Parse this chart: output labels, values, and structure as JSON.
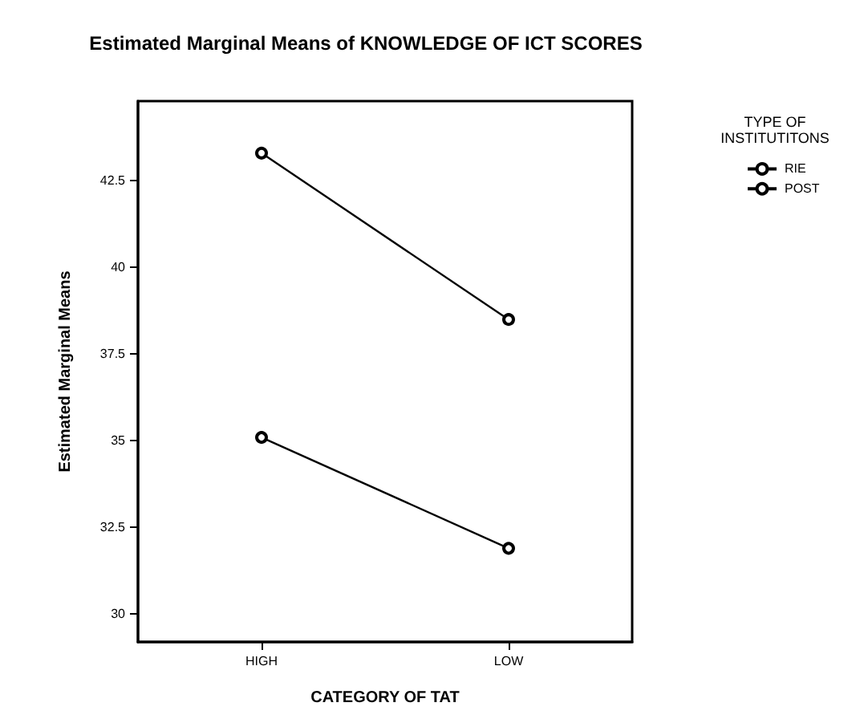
{
  "chart_data": {
    "type": "line",
    "title": "Estimated Marginal Means of KNOWLEDGE OF ICT SCORES",
    "xlabel": "CATEGORY OF TAT",
    "ylabel": "Estimated Marginal Means",
    "legend_title": "TYPE OF\nINSTITUTITONS",
    "categories": [
      "HIGH",
      "LOW"
    ],
    "series": [
      {
        "name": "RIE",
        "color": "#000000",
        "values": [
          43.3,
          38.5
        ]
      },
      {
        "name": "POST",
        "color": "#000000",
        "values": [
          35.1,
          31.9
        ]
      }
    ],
    "ylim": [
      29.2,
      44.8
    ],
    "yticks": [
      30,
      32.5,
      35,
      37.5,
      40,
      42.5
    ],
    "grid": false,
    "legend": "right",
    "marker": "circle",
    "line_style": "solid"
  }
}
